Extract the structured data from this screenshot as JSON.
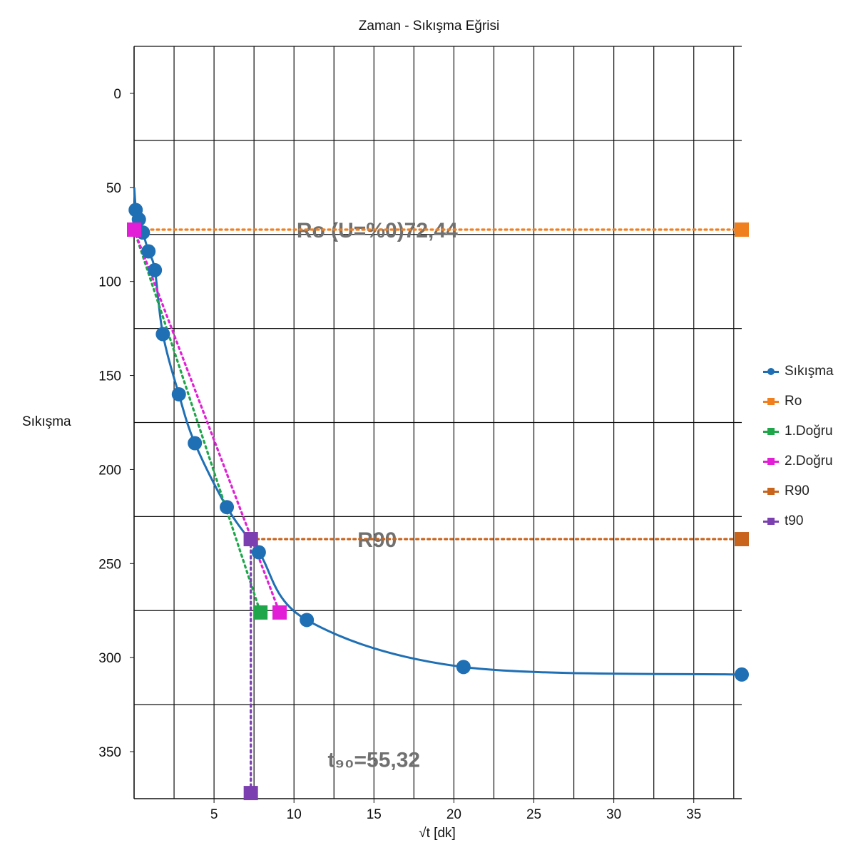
{
  "chart_data": {
    "type": "scatter",
    "title": "Zaman - Sıkışma Eğrisi",
    "xlabel": "√t [dk]",
    "ylabel": "Sıkışma",
    "xlim": [
      0,
      38
    ],
    "ylim": [
      0,
      375
    ],
    "y_inverted": true,
    "x_ticks": [
      5,
      10,
      15,
      20,
      25,
      30,
      35
    ],
    "y_ticks": [
      0,
      50,
      100,
      150,
      200,
      250,
      300,
      350
    ],
    "grid": true,
    "legend_position": "right",
    "series": [
      {
        "name": "Sıkışma",
        "color": "#1f6fb4",
        "marker": "circle",
        "line": "smooth",
        "points": [
          [
            0.1,
            62
          ],
          [
            0.3,
            67
          ],
          [
            0.55,
            74
          ],
          [
            0.9,
            84
          ],
          [
            1.3,
            94
          ],
          [
            1.8,
            128
          ],
          [
            2.8,
            160
          ],
          [
            3.8,
            186
          ],
          [
            5.8,
            220
          ],
          [
            7.8,
            244
          ],
          [
            10.8,
            280
          ],
          [
            20.6,
            305
          ],
          [
            38.0,
            309
          ]
        ]
      },
      {
        "name": "Ro",
        "color": "#f07f1e",
        "marker": "square",
        "line": "dotted",
        "points": [
          [
            0,
            72.44
          ],
          [
            38,
            72.44
          ]
        ]
      },
      {
        "name": "1.Doğru",
        "color": "#1fa64a",
        "marker": "square",
        "line": "dotted",
        "points": [
          [
            0,
            72.44
          ],
          [
            7.9,
            276
          ]
        ]
      },
      {
        "name": "2.Doğru",
        "color": "#e21fd6",
        "marker": "square",
        "line": "dotted",
        "points": [
          [
            0,
            72.44
          ],
          [
            9.1,
            276
          ]
        ]
      },
      {
        "name": "R90",
        "color": "#c8641c",
        "marker": "square",
        "line": "dotted",
        "points": [
          [
            7.3,
            237
          ],
          [
            38,
            237
          ]
        ]
      },
      {
        "name": "t90",
        "color": "#7b3fb0",
        "marker": "square",
        "line": "dotted",
        "points": [
          [
            7.3,
            237
          ],
          [
            7.3,
            372
          ]
        ]
      }
    ],
    "annotations": [
      {
        "text": "Ro (U=%0)72,44",
        "x": 15.2,
        "y": 72.44
      },
      {
        "text": "R90",
        "x": 15.2,
        "y": 237
      },
      {
        "text": "t₉₀=55,32",
        "x": 15.0,
        "y": 354
      }
    ]
  }
}
